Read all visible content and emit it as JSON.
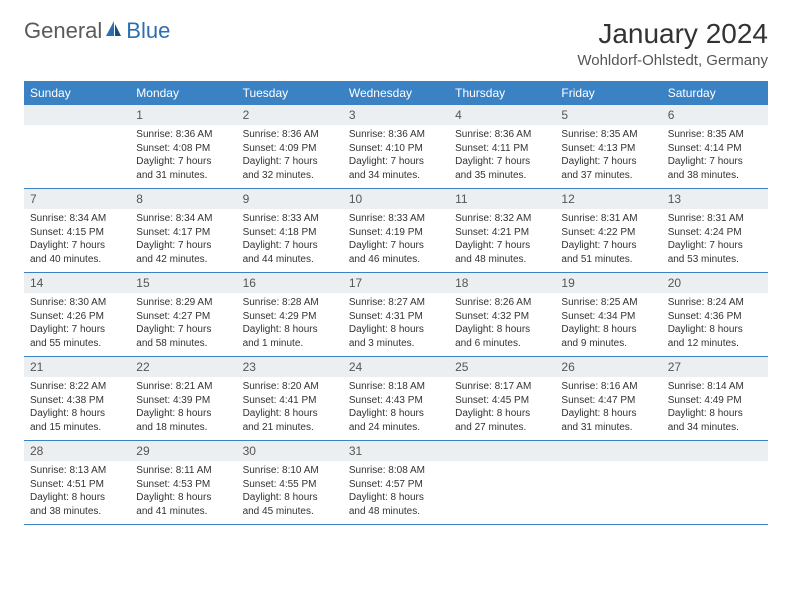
{
  "brand": {
    "part1": "General",
    "part2": "Blue"
  },
  "title": "January 2024",
  "location": "Wohldorf-Ohlstedt, Germany",
  "colors": {
    "header_bg": "#3b82c4",
    "header_text": "#ffffff",
    "daynum_bg": "#eceff1",
    "border": "#3b82c4",
    "logo_gray": "#5a5a5a",
    "logo_blue": "#2b6fb0"
  },
  "days_of_week": [
    "Sunday",
    "Monday",
    "Tuesday",
    "Wednesday",
    "Thursday",
    "Friday",
    "Saturday"
  ],
  "weeks": [
    {
      "nums": [
        "",
        "1",
        "2",
        "3",
        "4",
        "5",
        "6"
      ],
      "cells": [
        {
          "sunrise": "",
          "sunset": "",
          "daylight": ""
        },
        {
          "sunrise": "Sunrise: 8:36 AM",
          "sunset": "Sunset: 4:08 PM",
          "daylight": "Daylight: 7 hours and 31 minutes."
        },
        {
          "sunrise": "Sunrise: 8:36 AM",
          "sunset": "Sunset: 4:09 PM",
          "daylight": "Daylight: 7 hours and 32 minutes."
        },
        {
          "sunrise": "Sunrise: 8:36 AM",
          "sunset": "Sunset: 4:10 PM",
          "daylight": "Daylight: 7 hours and 34 minutes."
        },
        {
          "sunrise": "Sunrise: 8:36 AM",
          "sunset": "Sunset: 4:11 PM",
          "daylight": "Daylight: 7 hours and 35 minutes."
        },
        {
          "sunrise": "Sunrise: 8:35 AM",
          "sunset": "Sunset: 4:13 PM",
          "daylight": "Daylight: 7 hours and 37 minutes."
        },
        {
          "sunrise": "Sunrise: 8:35 AM",
          "sunset": "Sunset: 4:14 PM",
          "daylight": "Daylight: 7 hours and 38 minutes."
        }
      ]
    },
    {
      "nums": [
        "7",
        "8",
        "9",
        "10",
        "11",
        "12",
        "13"
      ],
      "cells": [
        {
          "sunrise": "Sunrise: 8:34 AM",
          "sunset": "Sunset: 4:15 PM",
          "daylight": "Daylight: 7 hours and 40 minutes."
        },
        {
          "sunrise": "Sunrise: 8:34 AM",
          "sunset": "Sunset: 4:17 PM",
          "daylight": "Daylight: 7 hours and 42 minutes."
        },
        {
          "sunrise": "Sunrise: 8:33 AM",
          "sunset": "Sunset: 4:18 PM",
          "daylight": "Daylight: 7 hours and 44 minutes."
        },
        {
          "sunrise": "Sunrise: 8:33 AM",
          "sunset": "Sunset: 4:19 PM",
          "daylight": "Daylight: 7 hours and 46 minutes."
        },
        {
          "sunrise": "Sunrise: 8:32 AM",
          "sunset": "Sunset: 4:21 PM",
          "daylight": "Daylight: 7 hours and 48 minutes."
        },
        {
          "sunrise": "Sunrise: 8:31 AM",
          "sunset": "Sunset: 4:22 PM",
          "daylight": "Daylight: 7 hours and 51 minutes."
        },
        {
          "sunrise": "Sunrise: 8:31 AM",
          "sunset": "Sunset: 4:24 PM",
          "daylight": "Daylight: 7 hours and 53 minutes."
        }
      ]
    },
    {
      "nums": [
        "14",
        "15",
        "16",
        "17",
        "18",
        "19",
        "20"
      ],
      "cells": [
        {
          "sunrise": "Sunrise: 8:30 AM",
          "sunset": "Sunset: 4:26 PM",
          "daylight": "Daylight: 7 hours and 55 minutes."
        },
        {
          "sunrise": "Sunrise: 8:29 AM",
          "sunset": "Sunset: 4:27 PM",
          "daylight": "Daylight: 7 hours and 58 minutes."
        },
        {
          "sunrise": "Sunrise: 8:28 AM",
          "sunset": "Sunset: 4:29 PM",
          "daylight": "Daylight: 8 hours and 1 minute."
        },
        {
          "sunrise": "Sunrise: 8:27 AM",
          "sunset": "Sunset: 4:31 PM",
          "daylight": "Daylight: 8 hours and 3 minutes."
        },
        {
          "sunrise": "Sunrise: 8:26 AM",
          "sunset": "Sunset: 4:32 PM",
          "daylight": "Daylight: 8 hours and 6 minutes."
        },
        {
          "sunrise": "Sunrise: 8:25 AM",
          "sunset": "Sunset: 4:34 PM",
          "daylight": "Daylight: 8 hours and 9 minutes."
        },
        {
          "sunrise": "Sunrise: 8:24 AM",
          "sunset": "Sunset: 4:36 PM",
          "daylight": "Daylight: 8 hours and 12 minutes."
        }
      ]
    },
    {
      "nums": [
        "21",
        "22",
        "23",
        "24",
        "25",
        "26",
        "27"
      ],
      "cells": [
        {
          "sunrise": "Sunrise: 8:22 AM",
          "sunset": "Sunset: 4:38 PM",
          "daylight": "Daylight: 8 hours and 15 minutes."
        },
        {
          "sunrise": "Sunrise: 8:21 AM",
          "sunset": "Sunset: 4:39 PM",
          "daylight": "Daylight: 8 hours and 18 minutes."
        },
        {
          "sunrise": "Sunrise: 8:20 AM",
          "sunset": "Sunset: 4:41 PM",
          "daylight": "Daylight: 8 hours and 21 minutes."
        },
        {
          "sunrise": "Sunrise: 8:18 AM",
          "sunset": "Sunset: 4:43 PM",
          "daylight": "Daylight: 8 hours and 24 minutes."
        },
        {
          "sunrise": "Sunrise: 8:17 AM",
          "sunset": "Sunset: 4:45 PM",
          "daylight": "Daylight: 8 hours and 27 minutes."
        },
        {
          "sunrise": "Sunrise: 8:16 AM",
          "sunset": "Sunset: 4:47 PM",
          "daylight": "Daylight: 8 hours and 31 minutes."
        },
        {
          "sunrise": "Sunrise: 8:14 AM",
          "sunset": "Sunset: 4:49 PM",
          "daylight": "Daylight: 8 hours and 34 minutes."
        }
      ]
    },
    {
      "nums": [
        "28",
        "29",
        "30",
        "31",
        "",
        "",
        ""
      ],
      "cells": [
        {
          "sunrise": "Sunrise: 8:13 AM",
          "sunset": "Sunset: 4:51 PM",
          "daylight": "Daylight: 8 hours and 38 minutes."
        },
        {
          "sunrise": "Sunrise: 8:11 AM",
          "sunset": "Sunset: 4:53 PM",
          "daylight": "Daylight: 8 hours and 41 minutes."
        },
        {
          "sunrise": "Sunrise: 8:10 AM",
          "sunset": "Sunset: 4:55 PM",
          "daylight": "Daylight: 8 hours and 45 minutes."
        },
        {
          "sunrise": "Sunrise: 8:08 AM",
          "sunset": "Sunset: 4:57 PM",
          "daylight": "Daylight: 8 hours and 48 minutes."
        },
        {
          "sunrise": "",
          "sunset": "",
          "daylight": ""
        },
        {
          "sunrise": "",
          "sunset": "",
          "daylight": ""
        },
        {
          "sunrise": "",
          "sunset": "",
          "daylight": ""
        }
      ]
    }
  ]
}
